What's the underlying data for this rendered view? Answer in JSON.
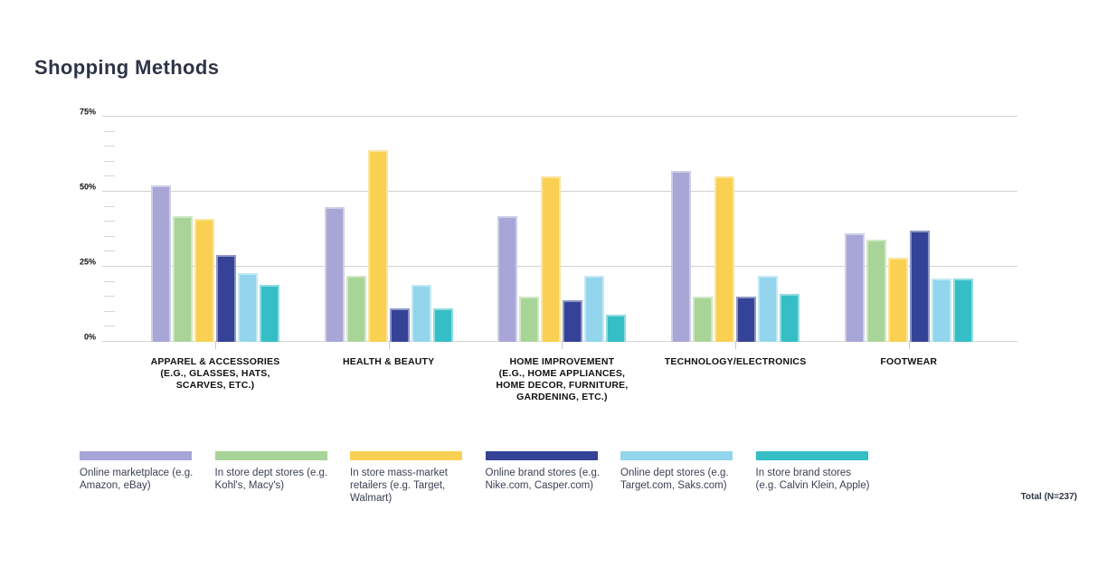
{
  "title": "Shopping Methods",
  "total_note": "Total (N=237)",
  "chart_data": {
    "type": "bar",
    "title": "Shopping Methods",
    "categories": [
      "APPAREL & ACCESSORIES\n(E.G., GLASSES, HATS,\nSCARVES, ETC.)",
      "HEALTH & BEAUTY",
      "HOME IMPROVEMENT\n(E.G., HOME APPLIANCES,\nHOME DECOR, FURNITURE,\nGARDENING, ETC.)",
      "TECHNOLOGY/ELECTRONICS",
      "FOOTWEAR"
    ],
    "series": [
      {
        "name": "Online marketplace (e.g. Amazon, eBay)",
        "color": "#a7a6d6",
        "values": [
          52,
          45,
          42,
          57,
          36
        ]
      },
      {
        "name": "In store dept stores (e.g. Kohl's, Macy's)",
        "color": "#a8d498",
        "values": [
          42,
          22,
          15,
          15,
          34
        ]
      },
      {
        "name": "In store mass-market retailers (e.g. Target, Walmart)",
        "color": "#f9d052",
        "values": [
          41,
          64,
          55,
          55,
          28
        ]
      },
      {
        "name": "Online brand stores (e.g. Nike.com, Casper.com)",
        "color": "#344397",
        "values": [
          29,
          11,
          14,
          15,
          37
        ]
      },
      {
        "name": "Online dept stores (e.g. Target.com, Saks.com)",
        "color": "#92d5ec",
        "values": [
          23,
          19,
          22,
          22,
          21
        ]
      },
      {
        "name": "In store brand stores (e.g. Calvin Klein, Apple)",
        "color": "#35bec6",
        "values": [
          19,
          11,
          9,
          16,
          21
        ]
      }
    ],
    "y_axis": {
      "tick_labels": [
        "0%",
        "25%",
        "50%",
        "75%"
      ],
      "tick_values": [
        0,
        25,
        50,
        75
      ],
      "minor_step": 5,
      "ylim": [
        0,
        75
      ]
    },
    "xlabel": "",
    "ylabel": "",
    "grid": true,
    "legend_position": "bottom"
  },
  "colors": {
    "title_text": "#2e3447",
    "axis_text": "#111111",
    "legend_text": "#3b4154",
    "gridline": "#d2d2d2",
    "background": "#ffffff"
  }
}
